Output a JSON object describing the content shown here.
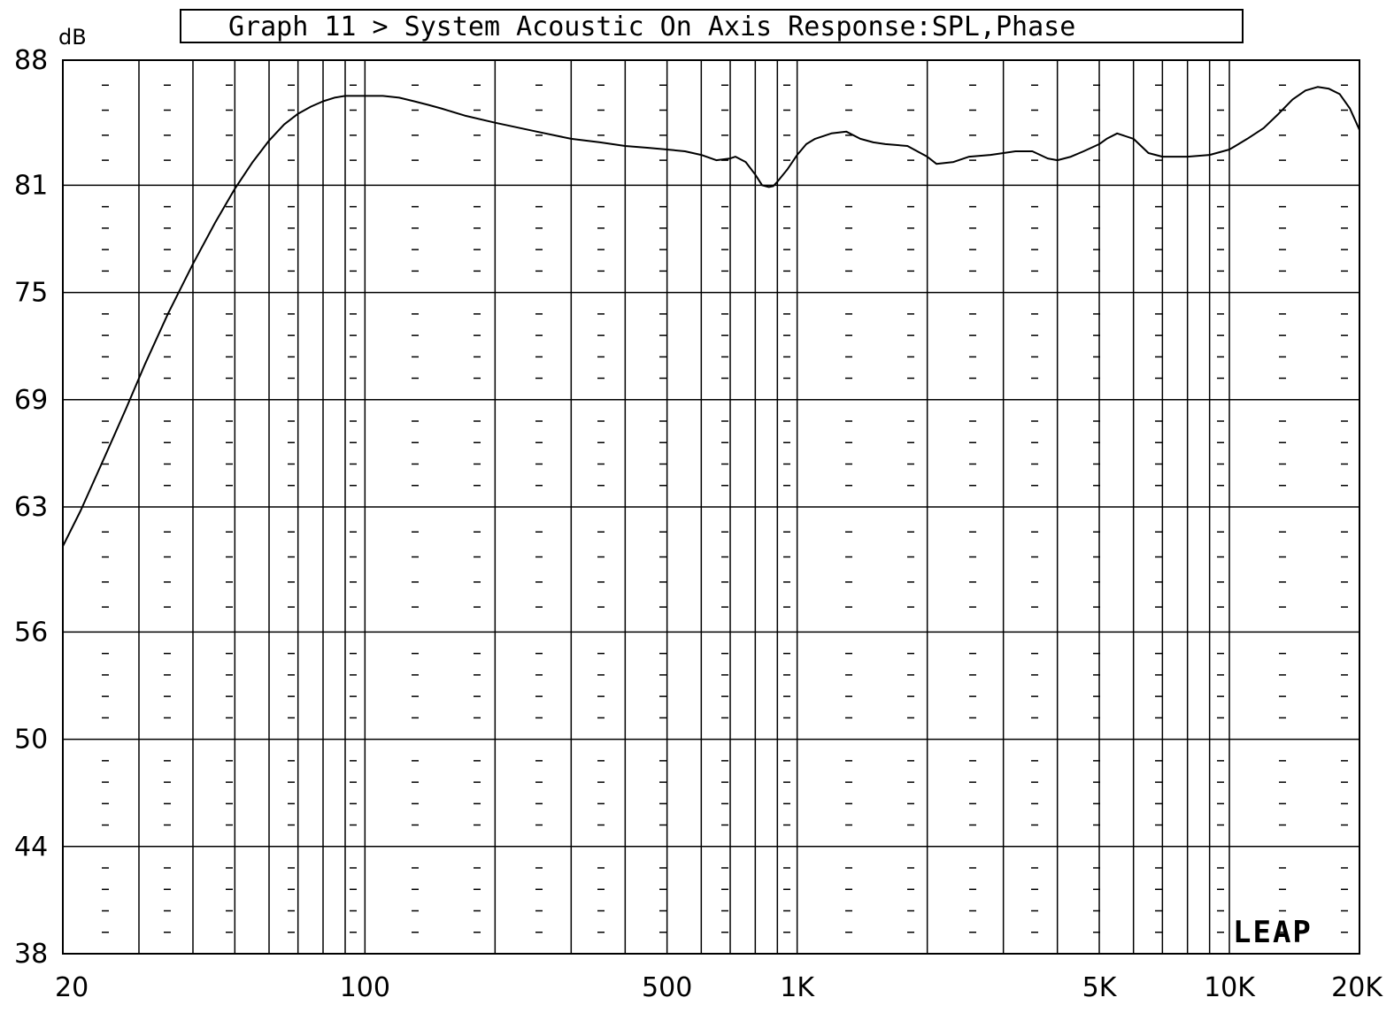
{
  "chart_data": {
    "type": "line",
    "title": "Graph 11 > System Acoustic On Axis Response:SPL,Phase",
    "ylabel": "dB",
    "xlabel": "",
    "x_scale": "log",
    "xlim": [
      20,
      20000
    ],
    "ylim": [
      38,
      88
    ],
    "y_ticks": [
      88,
      81,
      75,
      69,
      63,
      56,
      50,
      44,
      38
    ],
    "y_tick_labels": [
      "88",
      "81",
      "75",
      "69",
      "63",
      "56",
      "50",
      "44",
      "38"
    ],
    "x_tick_labels": [
      {
        "value": 20,
        "label": "20"
      },
      {
        "value": 100,
        "label": "100"
      },
      {
        "value": 500,
        "label": "500"
      },
      {
        "value": 1000,
        "label": "1K"
      },
      {
        "value": 5000,
        "label": "5K"
      },
      {
        "value": 10000,
        "label": "10K"
      },
      {
        "value": 20000,
        "label": "20K"
      }
    ],
    "grid": true,
    "watermark": "LEAP",
    "series": [
      {
        "x": [
          20,
          22,
          25,
          28,
          31,
          35,
          40,
          45,
          50,
          55,
          60,
          65,
          70,
          75,
          80,
          85,
          90,
          95,
          100,
          105,
          110,
          120,
          130,
          140,
          150,
          170,
          200,
          250,
          300,
          350,
          400,
          450,
          500,
          550,
          600,
          650,
          700,
          720,
          760,
          800,
          830,
          860,
          880,
          900,
          950,
          1000,
          1050,
          1100,
          1200,
          1300,
          1400,
          1500,
          1600,
          1800,
          2000,
          2100,
          2300,
          2500,
          2800,
          3000,
          3200,
          3500,
          3800,
          4000,
          4300,
          4600,
          5000,
          5200,
          5500,
          6000,
          6500,
          7000,
          8000,
          9000,
          10000,
          10500,
          11000,
          12000,
          13000,
          14000,
          15000,
          16000,
          17000,
          18000,
          19000,
          20000
        ],
        "y": [
          60.8,
          62.8,
          65.8,
          68.5,
          71.0,
          73.8,
          76.6,
          78.9,
          80.8,
          82.3,
          83.5,
          84.4,
          85.0,
          85.4,
          85.7,
          85.9,
          86.0,
          86.0,
          86.0,
          86.0,
          86.0,
          85.9,
          85.7,
          85.5,
          85.3,
          84.9,
          84.5,
          84.0,
          83.6,
          83.4,
          83.2,
          83.1,
          83.0,
          82.9,
          82.7,
          82.4,
          82.5,
          82.6,
          82.3,
          81.6,
          81.0,
          80.9,
          80.95,
          81.2,
          81.9,
          82.7,
          83.3,
          83.6,
          83.9,
          84.0,
          83.6,
          83.4,
          83.3,
          83.2,
          82.6,
          82.2,
          82.3,
          82.6,
          82.7,
          82.8,
          82.9,
          82.9,
          82.5,
          82.4,
          82.6,
          82.9,
          83.3,
          83.6,
          83.9,
          83.6,
          82.8,
          82.6,
          82.6,
          82.7,
          83.0,
          83.3,
          83.6,
          84.2,
          85.0,
          85.8,
          86.3,
          86.5,
          86.4,
          86.1,
          85.3,
          84.1
        ]
      }
    ]
  }
}
